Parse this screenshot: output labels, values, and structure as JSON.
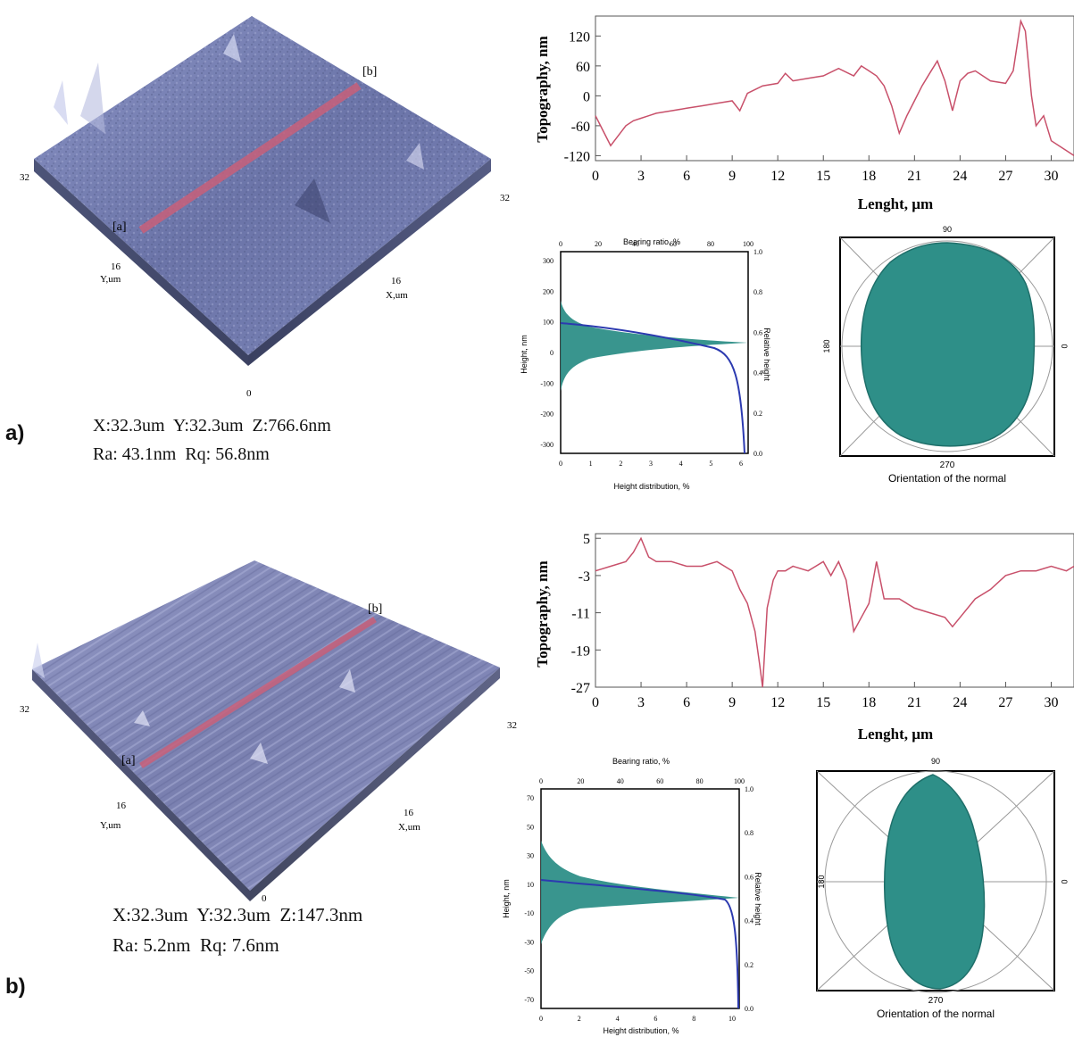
{
  "panels": [
    {
      "id": "a",
      "label": "a)",
      "meta_line1": "X:32.3um  Y:32.3um  Z:766.6nm",
      "meta_line2": "Ra: 43.1nm  Rq: 56.8nm",
      "surface": {
        "labels": {
          "a": "[a]",
          "b": "[b]",
          "left": "32",
          "right": "32",
          "y_mid": "16",
          "y_unit": "Y,um",
          "x_mid": "16",
          "x_unit": "X,um",
          "bottom": "0"
        }
      },
      "profile": {
        "type": "line",
        "ylabel": "Topography, nm",
        "xlabel": "Lenght, µm",
        "xlim": [
          0,
          31.5
        ],
        "ylim": [
          -130,
          160
        ],
        "xticks": [
          0,
          3,
          6,
          9,
          12,
          15,
          18,
          21,
          24,
          27,
          30
        ],
        "yticks": [
          120,
          60,
          0,
          -60,
          -120
        ],
        "x": [
          0,
          0.5,
          1,
          1.5,
          2,
          2.5,
          3,
          3.5,
          4,
          5,
          6,
          7,
          8,
          9,
          9.5,
          10,
          11,
          12,
          12.5,
          13,
          14,
          15,
          16,
          17,
          17.5,
          18,
          18.5,
          19,
          19.5,
          20,
          20.5,
          21,
          21.5,
          22,
          22.5,
          23,
          23.5,
          24,
          24.5,
          25,
          26,
          27,
          27.5,
          28,
          28.3,
          28.7,
          29,
          29.5,
          30,
          30.5,
          31,
          31.5
        ],
        "y": [
          -40,
          -70,
          -100,
          -80,
          -60,
          -50,
          -45,
          -40,
          -35,
          -30,
          -25,
          -20,
          -15,
          -10,
          -30,
          5,
          20,
          25,
          45,
          30,
          35,
          40,
          55,
          40,
          60,
          50,
          40,
          20,
          -20,
          -75,
          -40,
          -10,
          20,
          45,
          70,
          30,
          -30,
          30,
          45,
          50,
          30,
          25,
          50,
          150,
          130,
          0,
          -60,
          -40,
          -90,
          -100,
          -110,
          -120
        ]
      },
      "histogram": {
        "type": "area",
        "top_label": "Bearing ratio, %",
        "left_label": "Height, nm",
        "right_label": "Relative height",
        "bottom_label": "Height distribution, %",
        "top_ticks": [
          "0",
          "20",
          "40",
          "60",
          "80",
          "100"
        ],
        "left_ticks": [
          "300",
          "200",
          "100",
          "0",
          "-100",
          "-200",
          "-300"
        ],
        "right_ticks": [
          "1.0",
          "0.8",
          "0.6",
          "0.4",
          "0.2",
          "0.0"
        ],
        "bottom_ticks": [
          "0",
          "1",
          "2",
          "3",
          "4",
          "5",
          "6"
        ]
      },
      "polar": {
        "type": "area",
        "title": "Orientation of the normal",
        "angle_labels": {
          "top": "90",
          "left": "180",
          "right": "0",
          "bottom": "270"
        }
      }
    },
    {
      "id": "b",
      "label": "b)",
      "meta_line1": "X:32.3um  Y:32.3um  Z:147.3nm",
      "meta_line2": "Ra: 5.2nm  Rq: 7.6nm",
      "surface": {
        "labels": {
          "a": "[a]",
          "b": "[b]",
          "left": "32",
          "right": "32",
          "y_mid": "16",
          "y_unit": "Y,um",
          "x_mid": "16",
          "x_unit": "X,um",
          "bottom": "0"
        }
      },
      "profile": {
        "type": "line",
        "ylabel": "Topography, nm",
        "xlabel": "Lenght, µm",
        "xlim": [
          0,
          31.5
        ],
        "ylim": [
          -27,
          6
        ],
        "xticks": [
          0,
          3,
          6,
          9,
          12,
          15,
          18,
          21,
          24,
          27,
          30
        ],
        "yticks": [
          5,
          -3,
          -11,
          -19,
          -27
        ],
        "x": [
          0,
          1,
          2,
          2.5,
          3,
          3.5,
          4,
          5,
          6,
          7,
          8,
          9,
          9.5,
          10,
          10.5,
          10.8,
          11,
          11.3,
          11.7,
          12,
          12.5,
          13,
          14,
          15,
          15.5,
          16,
          16.5,
          17,
          17.5,
          18,
          18.5,
          19,
          20,
          21,
          22,
          23,
          23.5,
          24,
          25,
          26,
          27,
          28,
          29,
          30,
          31,
          31.5
        ],
        "y": [
          -2,
          -1,
          0,
          2,
          5,
          1,
          0,
          0,
          -1,
          -1,
          0,
          -2,
          -6,
          -9,
          -15,
          -22,
          -27,
          -10,
          -4,
          -2,
          -2,
          -1,
          -2,
          0,
          -3,
          0,
          -4,
          -15,
          -12,
          -9,
          0,
          -8,
          -8,
          -10,
          -11,
          -12,
          -14,
          -12,
          -8,
          -6,
          -3,
          -2,
          -2,
          -1,
          -2,
          -1
        ]
      },
      "histogram": {
        "type": "area",
        "top_label": "Bearing ratio, %",
        "left_label": "Height, nm",
        "right_label": "Relative height",
        "bottom_label": "Height distribution, %",
        "top_ticks": [
          "0",
          "20",
          "40",
          "60",
          "80",
          "100"
        ],
        "left_ticks": [
          "70",
          "50",
          "30",
          "10",
          "-10",
          "-30",
          "-50",
          "-70"
        ],
        "right_ticks": [
          "1.0",
          "0.8",
          "0.6",
          "0.4",
          "0.2",
          "0.0"
        ],
        "bottom_ticks": [
          "0",
          "2",
          "4",
          "6",
          "8",
          "10"
        ]
      },
      "polar": {
        "type": "area",
        "title": "Orientation of the normal",
        "angle_labels": {
          "top": "90",
          "left": "180",
          "right": "0",
          "bottom": "270"
        }
      }
    }
  ]
}
